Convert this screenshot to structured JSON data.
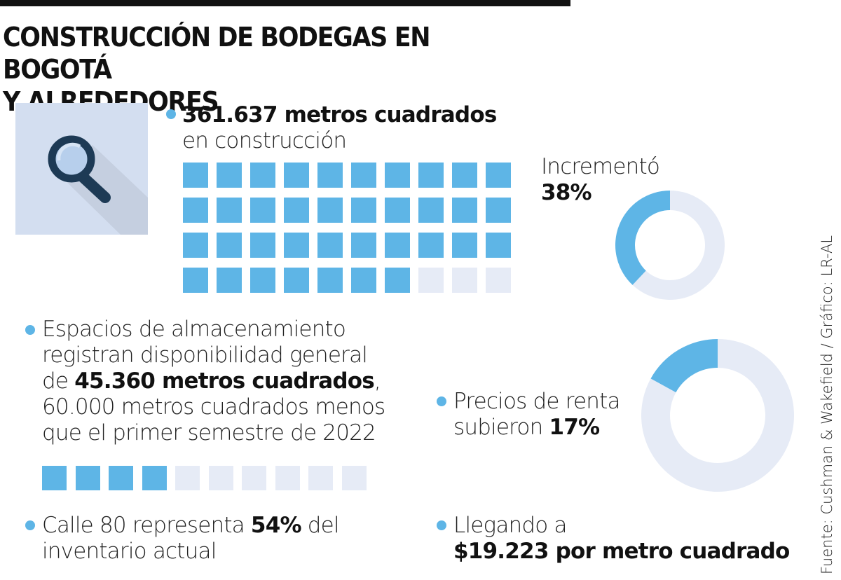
{
  "title_line1": "CONSTRUCCIÓN DE BODEGAS EN BOGOTÁ",
  "title_line2": "Y ALREDEDORES",
  "colors": {
    "accent": "#5eb5e6",
    "empty": "#e6ebf6",
    "icon_bg": "#d3def0",
    "icon_dark": "#1d3a55"
  },
  "icon": "magnifying-glass-icon",
  "block1": {
    "bold": "361.637 metros cuadrados",
    "rest": "en construcción"
  },
  "donut1": {
    "label": "Incrementó",
    "value_text": "38%"
  },
  "block2": {
    "line1": "Espacios de almacenamiento",
    "line2": "registran disponibilidad general",
    "pre": "de ",
    "bold": "45.360 metros cuadrados",
    "post": ",",
    "line4": "60.000 metros cuadrados menos",
    "line5": "que el primer semestre de 2022"
  },
  "block3": {
    "line1": "Precios de renta",
    "pre": "subieron ",
    "bold": "17%"
  },
  "block4": {
    "pre": "Calle 80 representa ",
    "bold": "54%",
    "post": " del",
    "line2": "inventario actual"
  },
  "block5": {
    "line1": "Llegando a",
    "bold": "$19.223 por metro cuadrado"
  },
  "source": "Fuente: Cushman & Wakefield / Gráfico: LR-AL",
  "chart_data": [
    {
      "type": "waffle",
      "name": "construccion",
      "total": 40,
      "filled": 37,
      "columns": 10
    },
    {
      "type": "pie",
      "name": "incremento",
      "values": [
        38,
        62
      ],
      "labels": [
        "Incrementó",
        ""
      ]
    },
    {
      "type": "waffle",
      "name": "disponibilidad",
      "total": 10,
      "filled": 4,
      "columns": 10
    },
    {
      "type": "pie",
      "name": "precios-renta",
      "values": [
        17,
        83
      ],
      "labels": [
        "Precios de renta subieron",
        ""
      ]
    }
  ]
}
